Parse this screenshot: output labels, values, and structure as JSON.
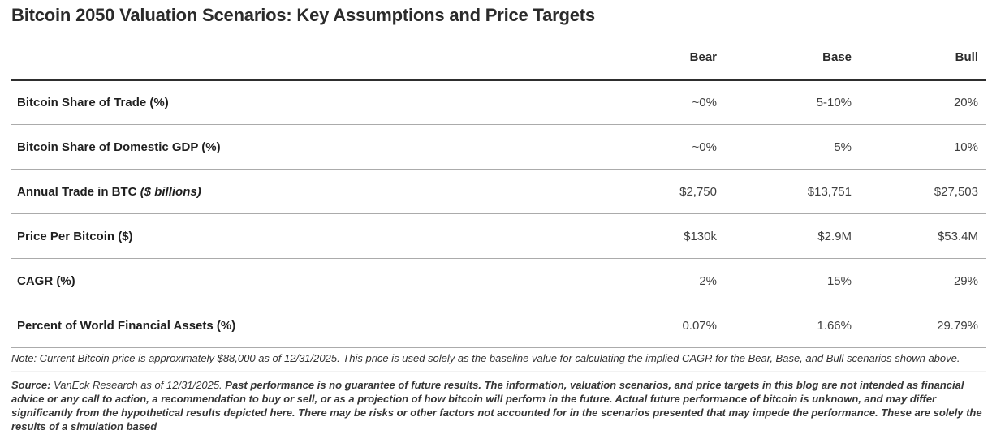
{
  "page": {
    "title": "Bitcoin 2050 Valuation Scenarios: Key Assumptions and Price Targets"
  },
  "table": {
    "columns": [
      "Bear",
      "Base",
      "Bull"
    ],
    "rows": [
      {
        "label": "Bitcoin Share of Trade (%)",
        "label_suffix": "",
        "bear": "~0%",
        "base": "5-10%",
        "bull": "20%"
      },
      {
        "label": "Bitcoin Share of Domestic GDP (%)",
        "label_suffix": "",
        "bear": "~0%",
        "base": "5%",
        "bull": "10%"
      },
      {
        "label": "Annual Trade in BTC",
        "label_suffix": "($ billions)",
        "bear": "$2,750",
        "base": "$13,751",
        "bull": "$27,503"
      },
      {
        "label": "Price Per Bitcoin ($)",
        "label_suffix": "",
        "bear": "$130k",
        "base": "$2.9M",
        "bull": "$53.4M"
      },
      {
        "label": "CAGR (%)",
        "label_suffix": "",
        "bear": "2%",
        "base": "15%",
        "bull": "29%"
      },
      {
        "label": "Percent of World Financial Assets (%)",
        "label_suffix": "",
        "bear": "0.07%",
        "base": "1.66%",
        "bull": "29.79%"
      }
    ]
  },
  "note": {
    "text": "Note: Current Bitcoin price is approximately $88,000 as of 12/31/2025. This price is used solely as the baseline value for calculating the implied CAGR for the Bear, Base, and Bull scenarios shown above."
  },
  "disclaimer": {
    "source_label": "Source:",
    "source_text": " VanEck Research as of 12/31/2025. ",
    "body": "Past performance is no guarantee of future results. The information, valuation scenarios, and price targets in this blog are not intended as financial advice or any call to action, a recommendation to buy or sell, or as a projection of how bitcoin will perform in the future. Actual future performance of bitcoin is unknown, and may differ significantly from the hypothetical results depicted here. There may be risks or other factors not accounted for in the scenarios presented that may impede the performance. These are solely the results of a simulation based"
  },
  "colors": {
    "heading_text": "#2b2b2b",
    "header_rule": "#2e2e2e",
    "row_rule": "#ababab",
    "value_text": "#3f3f3f",
    "note_text": "#333333"
  },
  "chart_data": {
    "type": "table",
    "title": "Bitcoin 2050 Valuation Scenarios: Key Assumptions and Price Targets",
    "columns": [
      "Metric",
      "Bear",
      "Base",
      "Bull"
    ],
    "rows": [
      [
        "Bitcoin Share of Trade (%)",
        "~0%",
        "5-10%",
        "20%"
      ],
      [
        "Bitcoin Share of Domestic GDP (%)",
        "~0%",
        "5%",
        "10%"
      ],
      [
        "Annual Trade in BTC ($ billions)",
        "$2,750",
        "$13,751",
        "$27,503"
      ],
      [
        "Price Per Bitcoin ($)",
        "$130k",
        "$2.9M",
        "$53.4M"
      ],
      [
        "CAGR (%)",
        "2%",
        "15%",
        "29%"
      ],
      [
        "Percent of World Financial Assets (%)",
        "0.07%",
        "1.66%",
        "29.79%"
      ]
    ],
    "notes": [
      "Note: Current Bitcoin price is approximately $88,000 as of 12/31/2025. This price is used solely as the baseline value for calculating the implied CAGR for the Bear, Base, and Bull scenarios shown above."
    ]
  }
}
